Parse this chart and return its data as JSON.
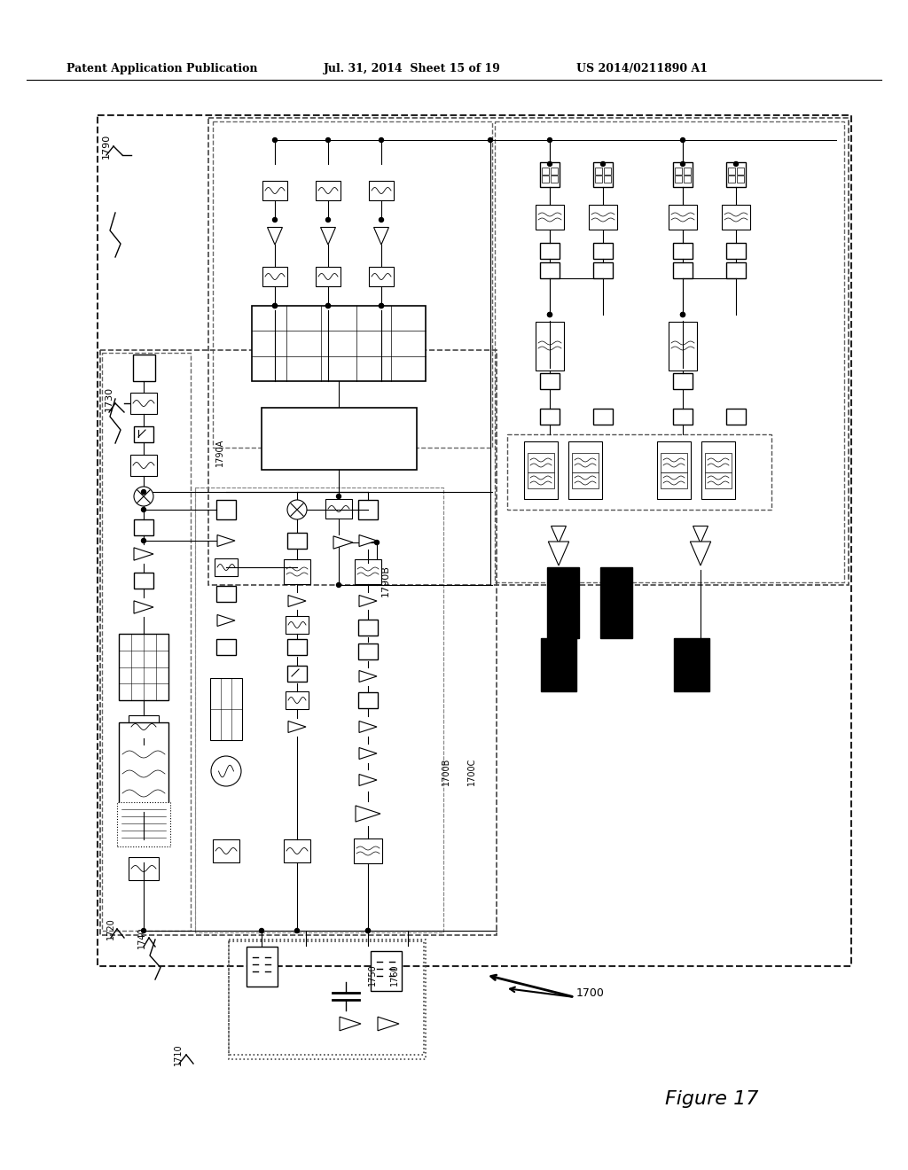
{
  "header_left": "Patent Application Publication",
  "header_center": "Jul. 31, 2014  Sheet 15 of 19",
  "header_right": "US 2014/0211890 A1",
  "figure_label": "Figure 17",
  "bg_color": "#ffffff",
  "line_color": "#000000"
}
